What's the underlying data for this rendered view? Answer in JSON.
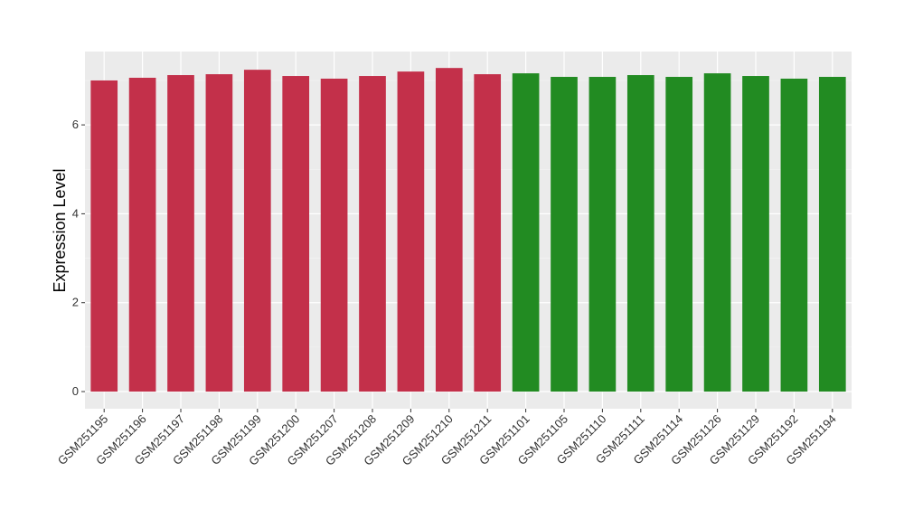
{
  "chart_data": {
    "type": "bar",
    "y_label": "Expression Level",
    "categories": [
      "GSM251195",
      "GSM251196",
      "GSM251197",
      "GSM251198",
      "GSM251199",
      "GSM251200",
      "GSM251207",
      "GSM251208",
      "GSM251209",
      "GSM251210",
      "GSM251211",
      "GSM251101",
      "GSM251105",
      "GSM251110",
      "GSM251111",
      "GSM251114",
      "GSM251126",
      "GSM251129",
      "GSM251192",
      "GSM251194"
    ],
    "values": [
      7.0,
      7.06,
      7.12,
      7.14,
      7.24,
      7.1,
      7.04,
      7.1,
      7.2,
      7.28,
      7.14,
      7.16,
      7.08,
      7.08,
      7.12,
      7.08,
      7.16,
      7.1,
      7.04,
      7.08
    ],
    "colors": [
      "#c3304a",
      "#c3304a",
      "#c3304a",
      "#c3304a",
      "#c3304a",
      "#c3304a",
      "#c3304a",
      "#c3304a",
      "#c3304a",
      "#c3304a",
      "#c3304a",
      "#228b22",
      "#228b22",
      "#228b22",
      "#228b22",
      "#228b22",
      "#228b22",
      "#228b22",
      "#228b22",
      "#228b22"
    ],
    "ylim": [
      -0.386,
      7.65
    ],
    "yticks": [
      0,
      2,
      4,
      6
    ],
    "minor_yticks": [
      1,
      3,
      5,
      7
    ],
    "grid": true
  }
}
